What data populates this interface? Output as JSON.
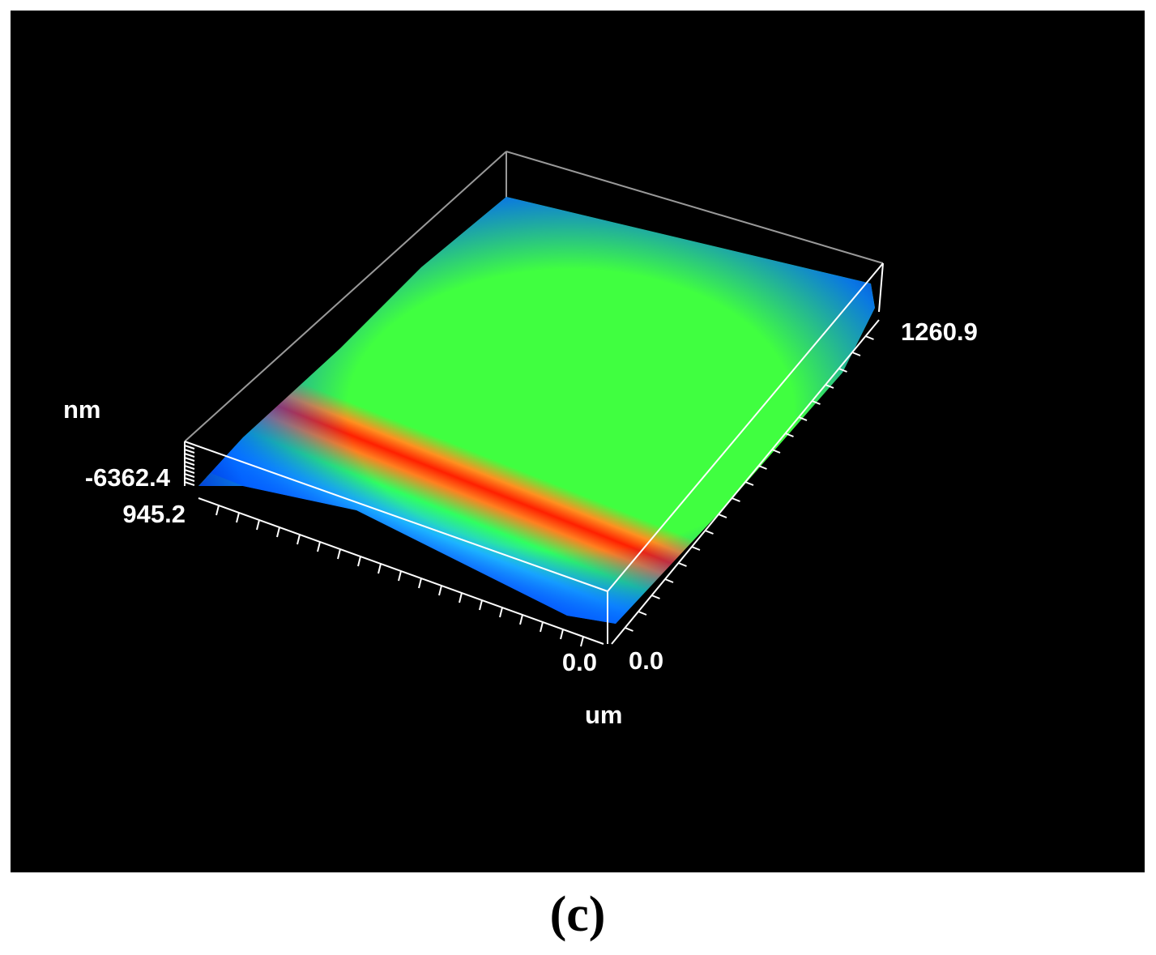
{
  "axis_labels": {
    "z_unit": "nm",
    "xy_unit": "um"
  },
  "tick_labels": {
    "z": "-6362.4",
    "x_max": "945.2",
    "x_min": "0.0",
    "y_min": "0.0",
    "y_max": "1260.9"
  },
  "caption": "(c)"
}
